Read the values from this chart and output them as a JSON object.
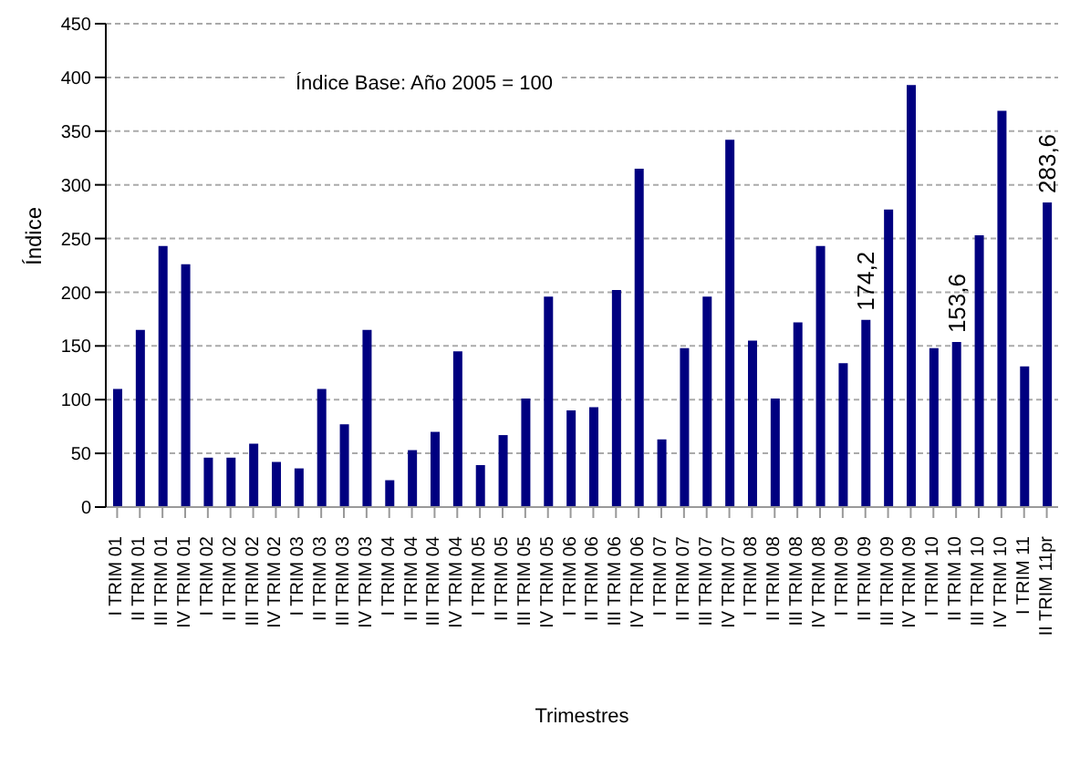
{
  "chart_data": {
    "type": "bar",
    "xlabel": "Trimestres",
    "ylabel": "Índice",
    "annotations": [
      "Índice Base: Año 2005 = 100"
    ],
    "categories": [
      "I TRIM 01",
      "II TRIM 01",
      "III TRIM 01",
      "IV TRIM 01",
      "I TRIM 02",
      "II TRIM 02",
      "III TRIM 02",
      "IV TRIM 02",
      "I TRIM 03",
      "II TRIM 03",
      "III TRIM 03",
      "IV TRIM 03",
      "I TRIM 04",
      "II TRIM 04",
      "III TRIM 04",
      "IV TRIM 04",
      "I TRIM 05",
      "II TRIM 05",
      "III TRIM 05",
      "IV TRIM 05",
      "I TRIM 06",
      "II TRIM 06",
      "III TRIM 06",
      "IV TRIM 06",
      "I TRIM 07",
      "II TRIM 07",
      "III TRIM 07",
      "IV TRIM 07",
      "I TRIM 08",
      "II TRIM 08",
      "III TRIM 08",
      "IV TRIM 08",
      "I TRIM 09",
      "II TRIM 09",
      "III TRIM 09",
      "IV TRIM 09",
      "I TRIM 10",
      "II TRIM 10",
      "III TRIM 10",
      "IV TRIM 10",
      "I TRIM 11",
      "II TRIM 11pr"
    ],
    "values": [
      110,
      165,
      243,
      226,
      46,
      46,
      59,
      42,
      36,
      110,
      77,
      165,
      25,
      53,
      70,
      145,
      39,
      67,
      101,
      196,
      90,
      93,
      202,
      315,
      63,
      148,
      196,
      342,
      155,
      101,
      172,
      243,
      134,
      174.2,
      277,
      393,
      148,
      153.6,
      253,
      369,
      131,
      283.6
    ],
    "value_labels": [
      null,
      null,
      null,
      null,
      null,
      null,
      null,
      null,
      null,
      null,
      null,
      null,
      null,
      null,
      null,
      null,
      null,
      null,
      null,
      null,
      null,
      null,
      null,
      null,
      null,
      null,
      null,
      null,
      null,
      null,
      null,
      null,
      null,
      "174,2",
      null,
      null,
      null,
      "153,6",
      null,
      null,
      null,
      "283,6"
    ],
    "color": "#000080",
    "ylim": [
      0,
      450
    ],
    "yticks": [
      0,
      50,
      100,
      150,
      200,
      250,
      300,
      350,
      400,
      450
    ],
    "grid": "y"
  }
}
